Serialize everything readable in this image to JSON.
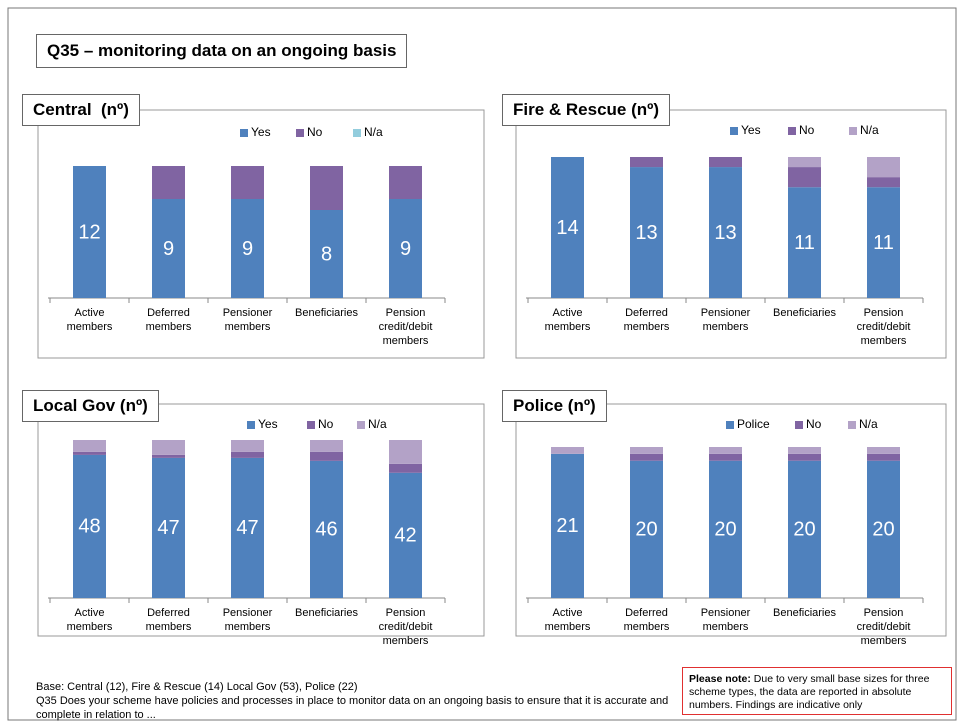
{
  "title": "Q35 – monitoring data on an ongoing basis",
  "base": "Base: Central (12), Fire & Rescue (14) Local Gov (53), Police (22)",
  "question": "Q35 Does your scheme have policies and processes in place to monitor data on an ongoing basis to ensure that it is accurate and complete in relation to ...",
  "note": {
    "label": "Please note:",
    "text": "Due to very small base sizes  for three scheme types, the data are reported in absolute numbers.  Findings are indicative only"
  },
  "chart_data": [
    {
      "type": "stacked_bar",
      "title": "Central  (nº)",
      "categories": [
        "Active members",
        "Deferred members",
        "Pensioner members",
        "Beneficiaries",
        "Pension credit/debit members"
      ],
      "series": [
        {
          "name": "Yes",
          "color": "#4f81bd",
          "values": [
            12,
            9,
            9,
            8,
            9
          ]
        },
        {
          "name": "No",
          "color": "#8064a2",
          "values": [
            0,
            3,
            3,
            4,
            3
          ]
        },
        {
          "name": "N/a",
          "color": "#93cddd",
          "values": [
            0,
            0,
            0,
            0,
            0
          ]
        }
      ]
    },
    {
      "type": "stacked_bar",
      "title": "Fire & Rescue (nº)",
      "categories": [
        "Active members",
        "Deferred members",
        "Pensioner members",
        "Beneficiaries",
        "Pension credit/debit members"
      ],
      "series": [
        {
          "name": "Yes",
          "color": "#4f81bd",
          "values": [
            14,
            13,
            13,
            11,
            11
          ]
        },
        {
          "name": "No",
          "color": "#8064a2",
          "values": [
            0,
            1,
            1,
            2,
            1
          ]
        },
        {
          "name": "N/a",
          "color": "#b3a2c7",
          "values": [
            0,
            0,
            0,
            1,
            2
          ]
        }
      ]
    },
    {
      "type": "stacked_bar",
      "title": "Local Gov (nº)",
      "categories": [
        "Active members",
        "Deferred members",
        "Pensioner members",
        "Beneficiaries",
        "Pension credit/debit members"
      ],
      "series": [
        {
          "name": "Yes",
          "color": "#4f81bd",
          "values": [
            48,
            47,
            47,
            46,
            42
          ]
        },
        {
          "name": "No",
          "color": "#8064a2",
          "values": [
            1,
            1,
            2,
            3,
            3
          ]
        },
        {
          "name": "N/a",
          "color": "#b3a2c7",
          "values": [
            4,
            5,
            4,
            4,
            8
          ]
        }
      ]
    },
    {
      "type": "stacked_bar",
      "title": "Police (nº)",
      "categories": [
        "Active members",
        "Deferred members",
        "Pensioner members",
        "Beneficiaries",
        "Pension credit/debit members"
      ],
      "series": [
        {
          "name": "Police",
          "color": "#4f81bd",
          "values": [
            21,
            20,
            20,
            20,
            20
          ]
        },
        {
          "name": "No",
          "color": "#8064a2",
          "values": [
            0,
            1,
            1,
            1,
            1
          ]
        },
        {
          "name": "N/a",
          "color": "#b3a2c7",
          "values": [
            1,
            1,
            1,
            1,
            1
          ]
        }
      ]
    }
  ]
}
